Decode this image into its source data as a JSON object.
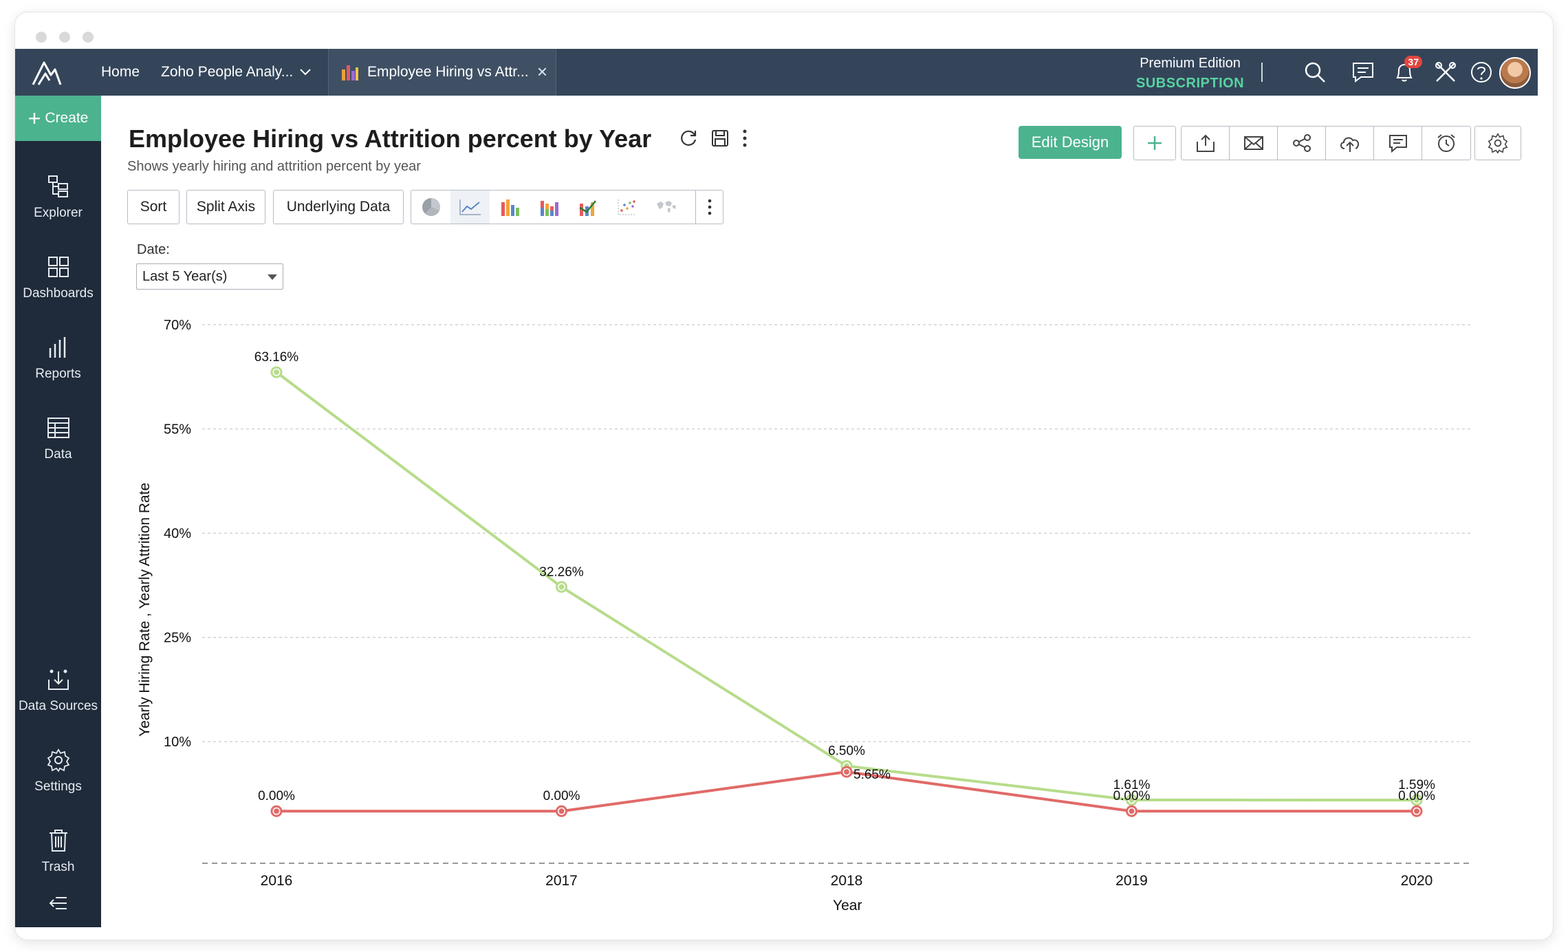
{
  "topbar": {
    "home": "Home",
    "workspace": "Zoho People Analy...",
    "tab_title": "Employee Hiring vs Attr...",
    "edition": "Premium Edition",
    "subscription": "SUBSCRIPTION",
    "notification_count": "37"
  },
  "sidebar": {
    "create": "Create",
    "items": [
      "Explorer",
      "Dashboards",
      "Reports",
      "Data",
      "Data Sources",
      "Settings",
      "Trash"
    ]
  },
  "report": {
    "title": "Employee Hiring vs Attrition percent by Year",
    "subtitle": "Shows yearly hiring and attrition percent by year",
    "edit_design": "Edit Design"
  },
  "buttons": {
    "sort": "Sort",
    "split_axis": "Split Axis",
    "underlying_data": "Underlying Data"
  },
  "filter": {
    "label": "Date:",
    "value": "Last 5 Year(s)"
  },
  "colors": {
    "hiring": "#b7dc8b",
    "attrition": "#e06a68",
    "accent": "#4cb38f",
    "topbar": "#34455a",
    "sidebar": "#1f2a3a"
  },
  "chart_data": {
    "type": "line",
    "categories": [
      "2016",
      "2017",
      "2018",
      "2019",
      "2020"
    ],
    "series": [
      {
        "values": [
          63.16,
          32.26,
          6.5,
          1.61,
          1.59
        ],
        "labels": [
          "63.16%",
          "32.26%",
          "6.50%",
          "1.61%",
          "1.59%"
        ],
        "color": "#b7dc8b"
      },
      {
        "values": [
          0.0,
          0.0,
          5.65,
          0.0,
          0.0
        ],
        "labels": [
          "0.00%",
          "0.00%",
          "5.65%",
          "0.00%",
          "0.00%"
        ],
        "color": "#e06a68"
      }
    ],
    "xlabel": "Year",
    "ylabel": "Yearly Hiring Rate , Yearly Attrition Rate",
    "yticks": [
      "10%",
      "25%",
      "40%",
      "55%",
      "70%"
    ],
    "ytick_values": [
      10,
      25,
      40,
      55,
      70
    ],
    "ylim": [
      -7.5,
      70
    ],
    "grid": true,
    "legend": "none"
  }
}
